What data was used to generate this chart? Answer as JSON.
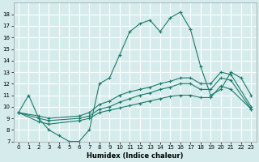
{
  "xlabel": "Humidex (Indice chaleur)",
  "background_color": "#d6ecec",
  "grid_color": "#ffffff",
  "line_color": "#1a7a6a",
  "xlim": [
    -0.5,
    23.5
  ],
  "ylim": [
    7,
    19
  ],
  "xticks": [
    0,
    1,
    2,
    3,
    4,
    5,
    6,
    7,
    8,
    9,
    10,
    11,
    12,
    13,
    14,
    15,
    16,
    17,
    18,
    19,
    20,
    21,
    22,
    23
  ],
  "yticks": [
    7,
    8,
    9,
    10,
    11,
    12,
    13,
    14,
    15,
    16,
    17,
    18
  ],
  "lines": [
    {
      "x": [
        0,
        1,
        2,
        3,
        4,
        5,
        6,
        7,
        8,
        9,
        10,
        11,
        12,
        13,
        14,
        15,
        16,
        17,
        18,
        19,
        20,
        21,
        22,
        23
      ],
      "y": [
        9.5,
        11.0,
        9.0,
        8.0,
        7.5,
        7.0,
        7.0,
        8.0,
        12.0,
        12.5,
        14.5,
        16.5,
        17.2,
        17.5,
        16.5,
        17.7,
        18.2,
        16.7,
        13.5,
        11.0,
        11.5,
        13.0,
        12.5,
        11.0
      ]
    },
    {
      "x": [
        0,
        2,
        3,
        6,
        7,
        8,
        9,
        10,
        11,
        12,
        13,
        14,
        15,
        16,
        17,
        18,
        19,
        20,
        21,
        23
      ],
      "y": [
        9.5,
        9.2,
        9.0,
        9.2,
        9.5,
        10.2,
        10.5,
        11.0,
        11.3,
        11.5,
        11.7,
        12.0,
        12.2,
        12.5,
        12.5,
        12.0,
        12.0,
        13.0,
        12.8,
        10.0
      ]
    },
    {
      "x": [
        0,
        2,
        3,
        6,
        7,
        8,
        9,
        10,
        11,
        12,
        13,
        14,
        15,
        16,
        17,
        18,
        19,
        20,
        21,
        23
      ],
      "y": [
        9.5,
        9.0,
        8.8,
        9.0,
        9.2,
        9.8,
        10.0,
        10.4,
        10.7,
        11.0,
        11.2,
        11.5,
        11.7,
        12.0,
        12.0,
        11.5,
        11.5,
        12.5,
        12.3,
        9.8
      ]
    },
    {
      "x": [
        0,
        2,
        3,
        6,
        7,
        8,
        9,
        10,
        11,
        12,
        13,
        14,
        15,
        16,
        17,
        18,
        19,
        20,
        21,
        23
      ],
      "y": [
        9.5,
        8.7,
        8.5,
        8.8,
        9.0,
        9.5,
        9.7,
        9.9,
        10.1,
        10.3,
        10.5,
        10.7,
        10.9,
        11.0,
        11.0,
        10.8,
        10.8,
        11.8,
        11.5,
        9.8
      ]
    }
  ]
}
